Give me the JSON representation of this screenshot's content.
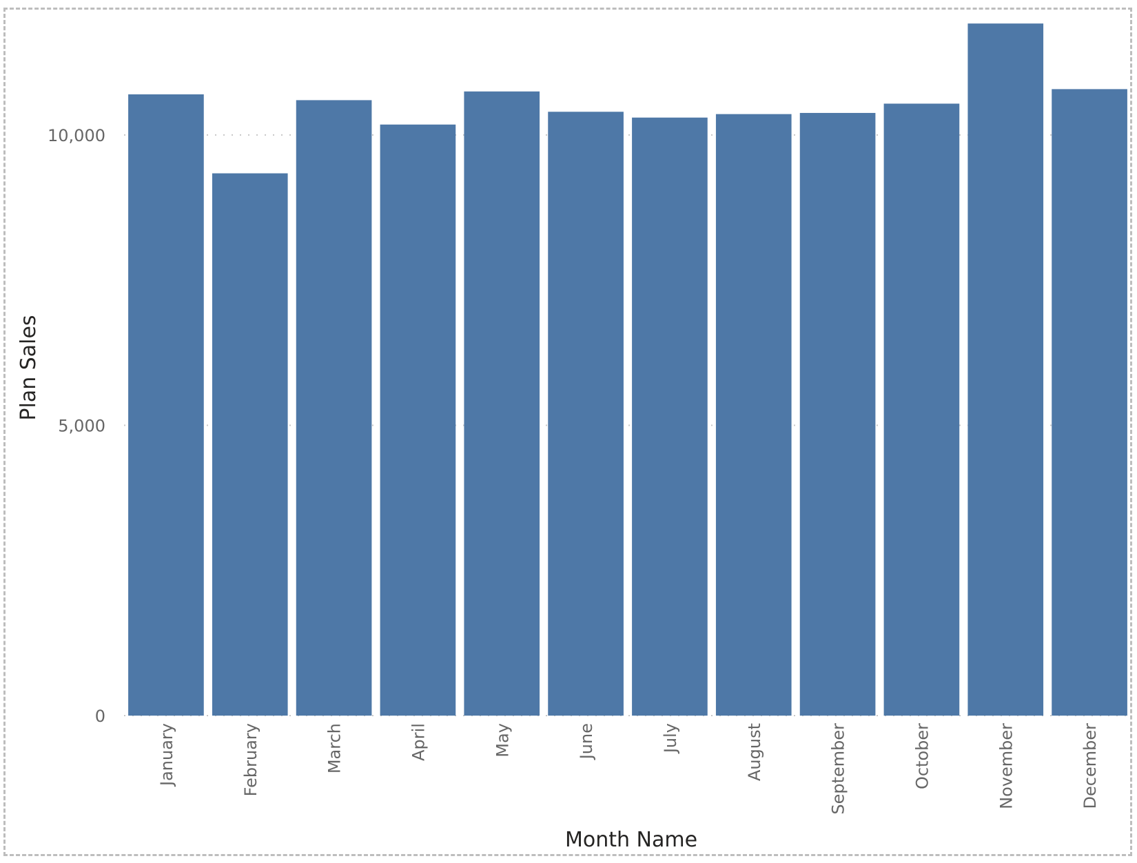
{
  "visual": {
    "frame": "dashed"
  },
  "chart_data": {
    "type": "bar",
    "title": "",
    "xlabel": "Month Name",
    "ylabel": "Plan Sales",
    "categories": [
      "January",
      "February",
      "March",
      "April",
      "May",
      "June",
      "July",
      "August",
      "September",
      "October",
      "November",
      "December"
    ],
    "values": [
      10700,
      9340,
      10600,
      10180,
      10750,
      10400,
      10300,
      10360,
      10380,
      10540,
      11920,
      10790
    ],
    "ylim": [
      0,
      12000
    ],
    "yticks": [
      0,
      5000,
      10000
    ],
    "ytick_labels": [
      "0",
      "5,000",
      "10,000"
    ],
    "grid": true,
    "grid_style": "dotted",
    "legend": "none",
    "colors": {
      "bar": "#4e78a7",
      "grid": "#c8c8c8",
      "frame": "#bdbdbd"
    }
  }
}
